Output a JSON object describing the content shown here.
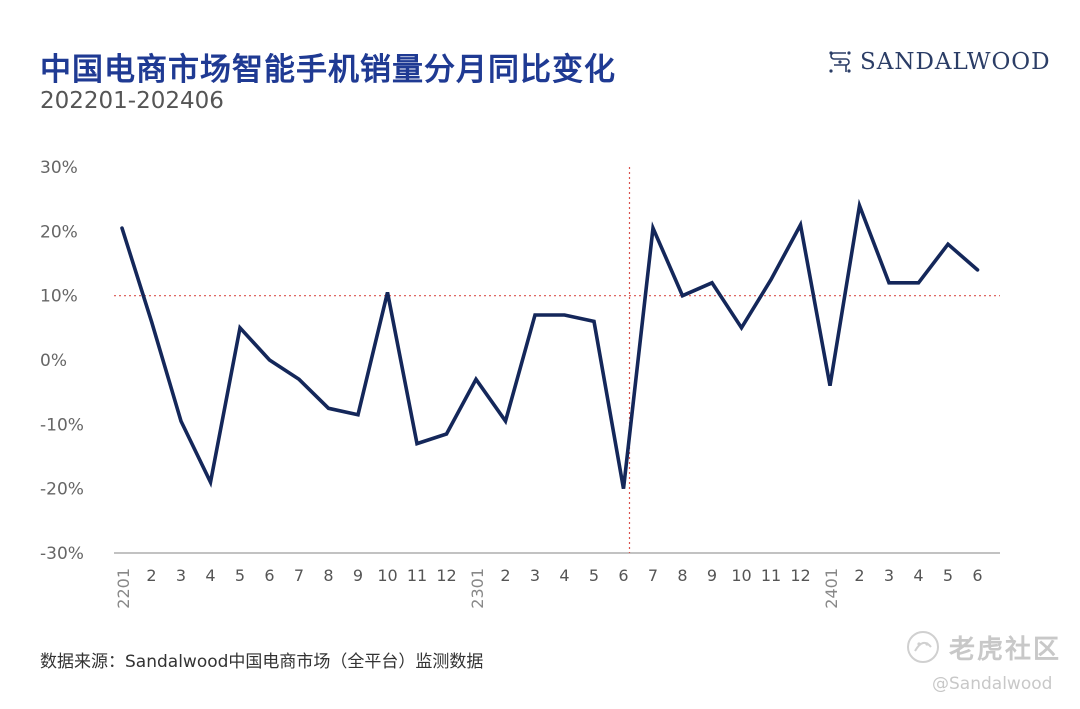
{
  "header": {
    "title": "中国电商市场智能手机销量分月同比变化",
    "subtitle": "202201-202406"
  },
  "brand": {
    "name": "SANDALWOOD",
    "logo_icon": "sandalwood-logo-icon",
    "color": "#2b3d66"
  },
  "footer": {
    "source": "数据来源：Sandalwood中国电商市场（全平台）监测数据"
  },
  "watermark": {
    "main": "老虎社区",
    "handle": "@Sandalwood",
    "icon": "tiger-community-logo-icon"
  },
  "colors": {
    "title": "#1f3a93",
    "line": "#14275a",
    "reference": "#d9534f",
    "axis": "#9e9e9e"
  },
  "chart_data": {
    "type": "line",
    "title": "中国电商市场智能手机销量分月同比变化",
    "subtitle": "202201-202406",
    "xlabel": "",
    "ylabel": "",
    "ylim": [
      -30,
      30
    ],
    "y_tick_values": [
      30,
      20,
      10,
      0,
      -10,
      -20,
      -30
    ],
    "y_tick_labels": [
      "30%",
      "20%",
      "10%",
      "0%",
      "-10%",
      "-20%",
      "-30%"
    ],
    "x_tick_labels": [
      "2201",
      "2",
      "3",
      "4",
      "5",
      "6",
      "7",
      "8",
      "9",
      "10",
      "11",
      "12",
      "2301",
      "2",
      "3",
      "4",
      "5",
      "6",
      "7",
      "8",
      "9",
      "10",
      "11",
      "12",
      "2401",
      "2",
      "3",
      "4",
      "5",
      "6"
    ],
    "rotated_tick_labels": [
      "2201",
      "2301",
      "2401"
    ],
    "values": [
      20.5,
      6,
      -9.5,
      -19,
      5,
      0,
      -3,
      -7.5,
      -8.5,
      10.5,
      -13,
      -11.5,
      -3,
      -9.5,
      7,
      7,
      6,
      -20,
      20.5,
      10,
      12,
      5,
      12.5,
      21,
      -4,
      24,
      12,
      12,
      18,
      14
    ],
    "reference_line_y": 10,
    "reference_line_x_index": 17,
    "grid": false,
    "legend": "none"
  }
}
